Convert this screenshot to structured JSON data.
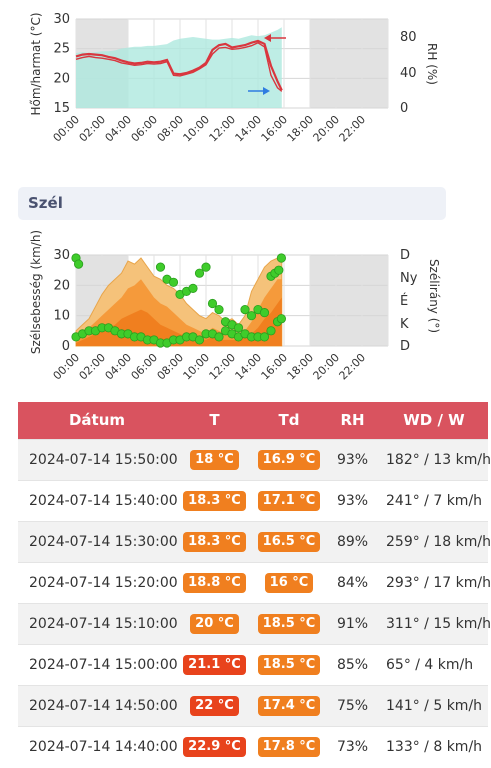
{
  "temp_chart": {
    "ylabel_left": "Hőm/harmat (°C)",
    "ylabel_right": "RH (%)",
    "left_ticks": [
      "30",
      "25",
      "20",
      "15"
    ],
    "right_ticks": [
      "80",
      "40",
      "0"
    ],
    "x_ticks": [
      "00:00",
      "02:00",
      "04:00",
      "06:00",
      "08:00",
      "10:00",
      "12:00",
      "14:00",
      "16:00",
      "18:00",
      "20:00",
      "22:00"
    ]
  },
  "section": {
    "title": "Szél"
  },
  "wind_chart": {
    "ylabel_left": "Szélsebesség (km/h)",
    "ylabel_right": "Szélirány (°)",
    "left_ticks": [
      "30",
      "20",
      "10",
      "0"
    ],
    "right_ticks": [
      "D",
      "Ny",
      "É",
      "K",
      "D"
    ],
    "x_ticks": [
      "00:00",
      "02:00",
      "04:00",
      "06:00",
      "08:00",
      "10:00",
      "12:00",
      "14:00",
      "16:00",
      "18:00",
      "20:00",
      "22:00"
    ]
  },
  "chart_data": [
    {
      "type": "line",
      "x_unit": "hour",
      "x": [
        0,
        0.5,
        1,
        1.5,
        2,
        2.5,
        3,
        3.5,
        4,
        4.5,
        5,
        5.5,
        6,
        6.5,
        7,
        7.5,
        8,
        8.5,
        9,
        9.5,
        10,
        10.5,
        11,
        11.5,
        12,
        12.5,
        13,
        13.5,
        14,
        14.5,
        15,
        15.5,
        15.83
      ],
      "xlim": [
        0,
        24
      ],
      "ylim": [
        15,
        30
      ],
      "y2lim": [
        0,
        100
      ],
      "grid": true,
      "series": [
        {
          "name": "",
          "axis": "left",
          "color": "#d9363e",
          "values": [
            23.7,
            24,
            24.1,
            24,
            23.9,
            23.6,
            23.4,
            23,
            22.7,
            22.5,
            22.6,
            22.8,
            22.7,
            22.8,
            23.1,
            20.8,
            20.7,
            20.9,
            21.3,
            21.8,
            22.6,
            24.8,
            25.6,
            25.8,
            25.2,
            25.4,
            25.6,
            26,
            26.3,
            25.8,
            22.1,
            19.5,
            18
          ]
        },
        {
          "name": "",
          "axis": "left",
          "color": "#d9363e",
          "values": [
            23.2,
            23.5,
            23.7,
            23.5,
            23.4,
            23.2,
            23,
            22.6,
            22.4,
            22.2,
            22.3,
            22.5,
            22.4,
            22.5,
            22.8,
            20.5,
            20.4,
            20.7,
            21,
            21.6,
            22.3,
            24.1,
            25.1,
            25.2,
            24.9,
            25,
            25.2,
            25.5,
            26,
            25.3,
            20.5,
            18.4,
            17.8
          ]
        },
        {
          "name": "",
          "axis": "right",
          "color": "#aee8de",
          "values": [
            62,
            63,
            62,
            63,
            64,
            64,
            65,
            67,
            68,
            69,
            69,
            70,
            70,
            71,
            72,
            76,
            78,
            79,
            80,
            79,
            78,
            77,
            77,
            78,
            79,
            78,
            80,
            82,
            81,
            82,
            85,
            88,
            91
          ]
        }
      ],
      "shaded_x": [
        [
          0,
          4
        ],
        [
          18,
          24
        ]
      ],
      "annotations": [
        {
          "arrow": "left",
          "color": "#d9363e",
          "axis": "left"
        },
        {
          "arrow": "right",
          "color": "#2f7de1",
          "axis": "right"
        }
      ]
    },
    {
      "type": "area",
      "x_unit": "hour",
      "x": [
        0,
        0.5,
        1,
        1.5,
        2,
        2.5,
        3,
        3.5,
        4,
        4.5,
        5,
        5.5,
        6,
        6.5,
        7,
        7.5,
        8,
        8.5,
        9,
        9.5,
        10,
        10.5,
        11,
        11.5,
        12,
        12.5,
        13,
        13.5,
        14,
        14.5,
        15,
        15.5,
        15.83
      ],
      "xlim": [
        0,
        24
      ],
      "ylim": [
        0,
        30
      ],
      "grid": true,
      "series": [
        {
          "name": "",
          "color": "#f5c27a",
          "values": [
            5,
            7,
            9,
            13,
            17,
            20,
            22,
            24,
            28,
            27,
            29,
            26,
            23,
            22,
            20,
            19,
            17,
            14,
            12,
            10,
            9,
            11,
            10,
            8,
            9,
            7,
            10,
            18,
            22,
            26,
            28,
            29,
            28
          ]
        },
        {
          "name": "",
          "color": "#f59a3b",
          "values": [
            3,
            4,
            6,
            8,
            10,
            12,
            14,
            16,
            19,
            20,
            22,
            19,
            16,
            14,
            13,
            11,
            9,
            7,
            6,
            5,
            4,
            6,
            5,
            4,
            5,
            4,
            5,
            8,
            12,
            16,
            19,
            22,
            22
          ]
        },
        {
          "name": "",
          "color": "#f07f1f",
          "values": [
            1,
            2,
            3,
            4,
            5,
            6,
            7,
            9,
            10,
            11,
            12,
            11,
            9,
            7,
            6,
            5,
            4,
            3,
            3,
            2,
            2,
            3,
            2,
            2,
            2,
            2,
            3,
            4,
            6,
            9,
            11,
            14,
            16
          ]
        }
      ],
      "scatter": [
        {
          "name": "",
          "color": "#3fcc2b",
          "axis": "left",
          "points": [
            [
              0,
              3
            ],
            [
              0.5,
              4
            ],
            [
              1,
              5
            ],
            [
              1.5,
              5
            ],
            [
              2,
              6
            ],
            [
              2.5,
              6
            ],
            [
              3,
              5
            ],
            [
              3.5,
              4
            ],
            [
              4,
              4
            ],
            [
              4.5,
              3
            ],
            [
              5,
              3
            ],
            [
              5.5,
              2
            ],
            [
              6,
              2
            ],
            [
              6.5,
              1
            ],
            [
              7,
              1
            ],
            [
              7.5,
              2
            ],
            [
              8,
              2
            ],
            [
              8.5,
              3
            ],
            [
              9,
              3
            ],
            [
              9.5,
              2
            ],
            [
              10,
              4
            ],
            [
              10.5,
              4
            ],
            [
              11,
              3
            ],
            [
              11.5,
              5
            ],
            [
              12,
              4
            ],
            [
              12.5,
              3
            ],
            [
              13,
              4
            ],
            [
              13.5,
              3
            ],
            [
              14,
              3
            ],
            [
              14.5,
              3
            ],
            [
              15,
              5
            ],
            [
              15.5,
              8
            ],
            [
              15.8,
              9
            ]
          ]
        },
        {
          "name": "",
          "color": "#3fcc2b",
          "axis": "right",
          "points": [
            [
              0,
              29
            ],
            [
              0.2,
              27
            ],
            [
              6.5,
              26
            ],
            [
              7,
              22
            ],
            [
              7.5,
              21
            ],
            [
              8,
              17
            ],
            [
              8.5,
              18
            ],
            [
              9,
              19
            ],
            [
              9.5,
              24
            ],
            [
              10,
              26
            ],
            [
              10.5,
              14
            ],
            [
              11,
              12
            ],
            [
              11.5,
              8
            ],
            [
              12,
              7
            ],
            [
              12.5,
              6
            ],
            [
              13,
              12
            ],
            [
              13.5,
              10
            ],
            [
              14,
              12
            ],
            [
              14.5,
              11
            ],
            [
              15,
              23
            ],
            [
              15.3,
              24
            ],
            [
              15.6,
              25
            ],
            [
              15.8,
              29
            ]
          ]
        }
      ],
      "shaded_x": [
        [
          0,
          4
        ],
        [
          18,
          24
        ]
      ]
    }
  ],
  "table": {
    "headers": [
      "Dátum",
      "T",
      "Td",
      "RH",
      "WD / W"
    ],
    "rows": [
      {
        "date": "2024-07-14 15:50:00",
        "t": "18 °C",
        "t_color": "#f07f1f",
        "td": "16.9 °C",
        "td_color": "#f07f1f",
        "rh": "93%",
        "wd": "182° / 13 km/h"
      },
      {
        "date": "2024-07-14 15:40:00",
        "t": "18.3 °C",
        "t_color": "#f07f1f",
        "td": "17.1 °C",
        "td_color": "#f07f1f",
        "rh": "93%",
        "wd": "241° / 7 km/h"
      },
      {
        "date": "2024-07-14 15:30:00",
        "t": "18.3 °C",
        "t_color": "#f07f1f",
        "td": "16.5 °C",
        "td_color": "#f07f1f",
        "rh": "89%",
        "wd": "259° / 18 km/h"
      },
      {
        "date": "2024-07-14 15:20:00",
        "t": "18.8 °C",
        "t_color": "#f07f1f",
        "td": "16 °C",
        "td_color": "#f07f1f",
        "rh": "84%",
        "wd": "293° / 17 km/h"
      },
      {
        "date": "2024-07-14 15:10:00",
        "t": "20 °C",
        "t_color": "#f07f1f",
        "td": "18.5 °C",
        "td_color": "#f07f1f",
        "rh": "91%",
        "wd": "311° / 15 km/h"
      },
      {
        "date": "2024-07-14 15:00:00",
        "t": "21.1 °C",
        "t_color": "#e8431c",
        "td": "18.5 °C",
        "td_color": "#f07f1f",
        "rh": "85%",
        "wd": "65° / 4 km/h"
      },
      {
        "date": "2024-07-14 14:50:00",
        "t": "22 °C",
        "t_color": "#e8431c",
        "td": "17.4 °C",
        "td_color": "#f07f1f",
        "rh": "75%",
        "wd": "141° / 5 km/h"
      },
      {
        "date": "2024-07-14 14:40:00",
        "t": "22.9 °C",
        "t_color": "#e8431c",
        "td": "17.8 °C",
        "td_color": "#f07f1f",
        "rh": "73%",
        "wd": "133° / 8 km/h"
      }
    ]
  }
}
